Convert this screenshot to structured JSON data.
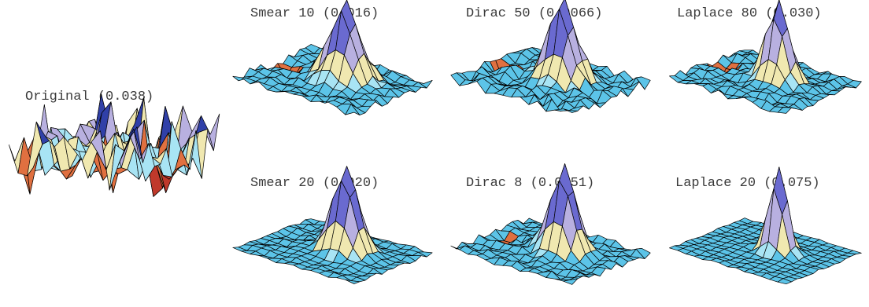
{
  "panels": [
    {
      "id": "original",
      "label": "Original (0.038)",
      "style": "noisy"
    },
    {
      "id": "smear10",
      "label": "Smear 10 (0.016)",
      "style": "smooth",
      "peak": 1.0,
      "spread": 1.5,
      "noise": 0.12,
      "dip": 0.25
    },
    {
      "id": "dirac50",
      "label": "Dirac 50 (0.0066)",
      "style": "smooth",
      "peak": 1.0,
      "spread": 1.4,
      "noise": 0.16,
      "dip": 0.35
    },
    {
      "id": "laplace80",
      "label": "Laplace 80 (0.030)",
      "style": "smooth",
      "peak": 1.05,
      "spread": 1.2,
      "noise": 0.1,
      "dip": 0.25
    },
    {
      "id": "smear20",
      "label": "Smear 20 (0.020)",
      "style": "smooth",
      "peak": 1.15,
      "spread": 1.3,
      "noise": 0.05,
      "dip": 0.05
    },
    {
      "id": "dirac8",
      "label": "Dirac 8 (0.0051)",
      "style": "smooth",
      "peak": 1.15,
      "spread": 1.3,
      "noise": 0.1,
      "dip": 0.12
    },
    {
      "id": "laplace20",
      "label": "Laplace 20 (0.075)",
      "style": "smooth",
      "peak": 1.2,
      "spread": 0.9,
      "noise": 0.03,
      "dip": 0.0
    }
  ],
  "palette": {
    "low": "#c0392b",
    "mid_low": "#e07040",
    "base_light": "#a8e4f4",
    "base": "#5cc4e8",
    "base_dark": "#3aa8d8",
    "high_a": "#6a6ad0",
    "high_b": "#b8b0e0",
    "high_c": "#f0e8b0",
    "high_d": "#3040a8",
    "edge": "#000000"
  }
}
